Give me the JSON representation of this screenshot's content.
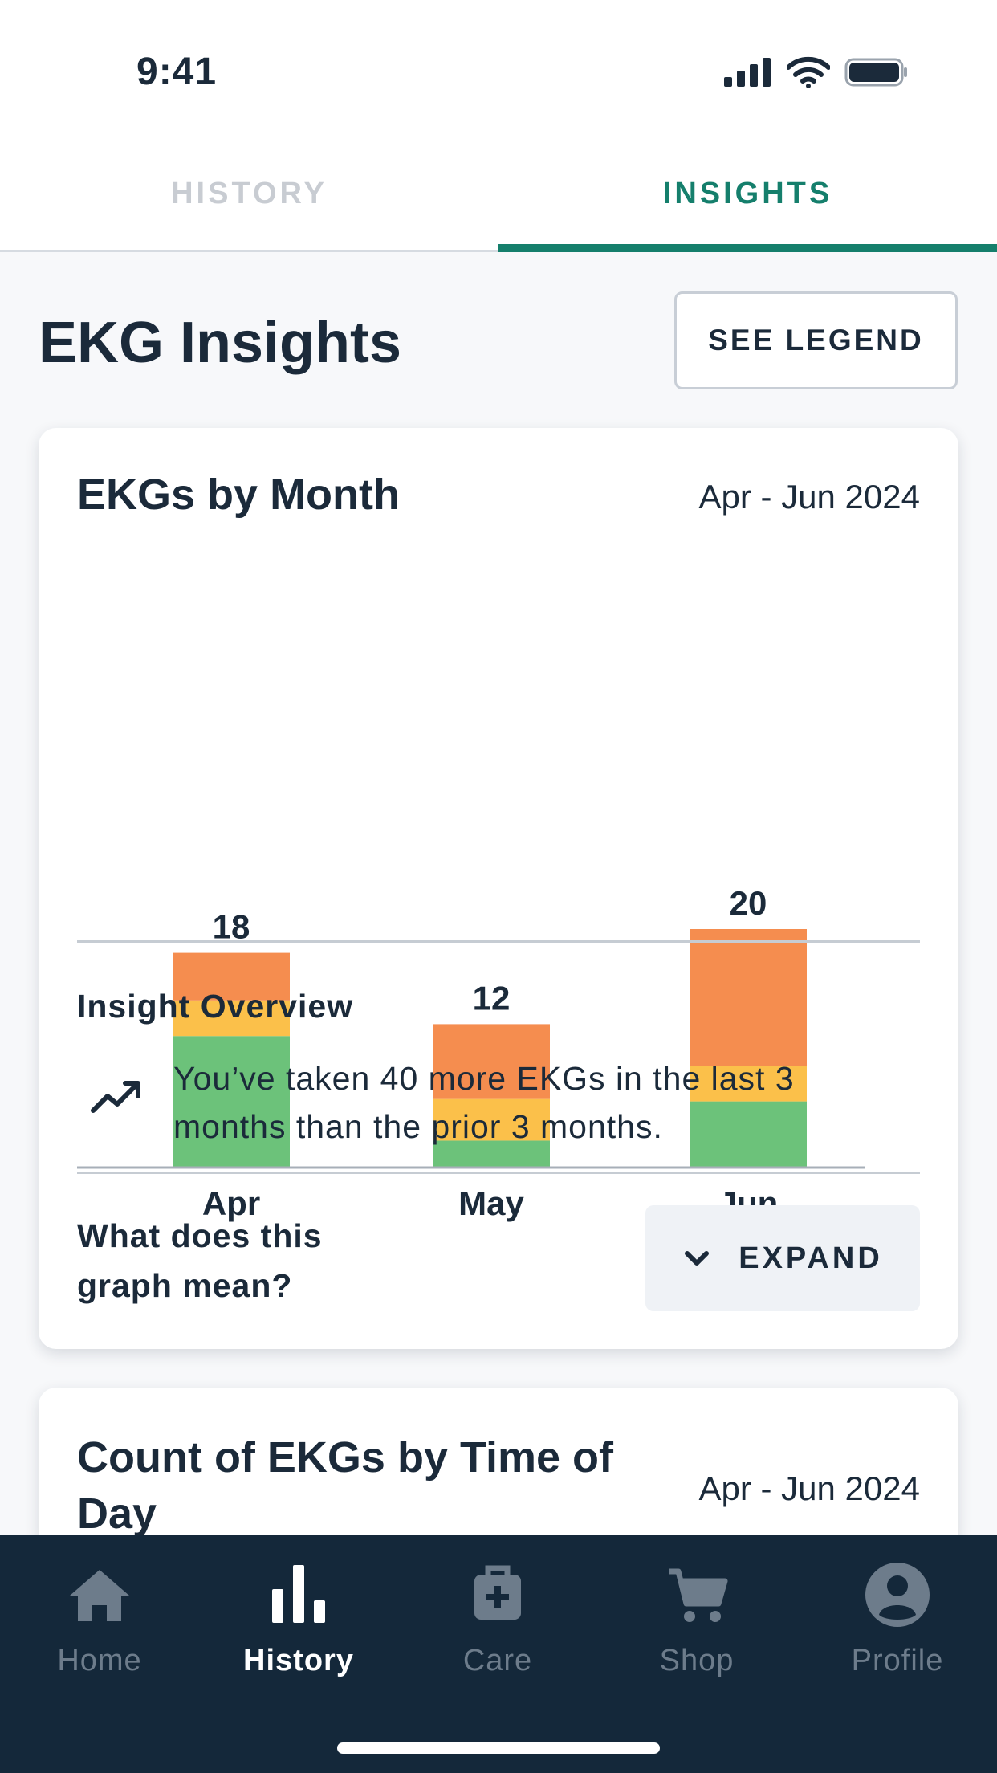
{
  "status_bar": {
    "time": "9:41"
  },
  "tabs": [
    {
      "label": "HISTORY",
      "active": false
    },
    {
      "label": "INSIGHTS",
      "active": true
    }
  ],
  "page": {
    "title": "EKG Insights",
    "legend_button": "SEE LEGEND"
  },
  "card1": {
    "title": "EKGs by Month",
    "range": "Apr - Jun 2024",
    "overview_title": "Insight Overview",
    "overview_icon": "trending-up-icon",
    "overview_text": "You’ve taken 40 more EKGs in the last 3 months than the prior 3 months.",
    "question": "What does this graph mean?",
    "expand_label": "EXPAND"
  },
  "chart_data": {
    "type": "bar",
    "stacked": true,
    "categories": [
      "Apr",
      "May",
      "Jun"
    ],
    "totals": [
      18,
      12,
      20
    ],
    "series": [
      {
        "values": [
          11,
          2.2,
          5.5
        ],
        "color": "#6cc27a"
      },
      {
        "values": [
          3,
          3.5,
          3
        ],
        "color": "#fbc04a"
      },
      {
        "values": [
          4,
          6.3,
          11.5
        ],
        "color": "#f58d4f"
      }
    ],
    "ylim": [
      0,
      20
    ],
    "grid": false,
    "legend": "none"
  },
  "card2": {
    "title": "Count of EKGs by Time of Day",
    "range": "Apr - Jun 2024"
  },
  "bottom_nav": [
    {
      "label": "Home",
      "icon": "home-icon",
      "active": false
    },
    {
      "label": "History",
      "icon": "bar-chart-icon",
      "active": true
    },
    {
      "label": "Care",
      "icon": "medical-bag-icon",
      "active": false
    },
    {
      "label": "Shop",
      "icon": "cart-icon",
      "active": false
    },
    {
      "label": "Profile",
      "icon": "profile-icon",
      "active": false
    }
  ],
  "colors": {
    "accent": "#157f6c",
    "nav_bg": "#14283a",
    "text": "#1b2a3a"
  }
}
